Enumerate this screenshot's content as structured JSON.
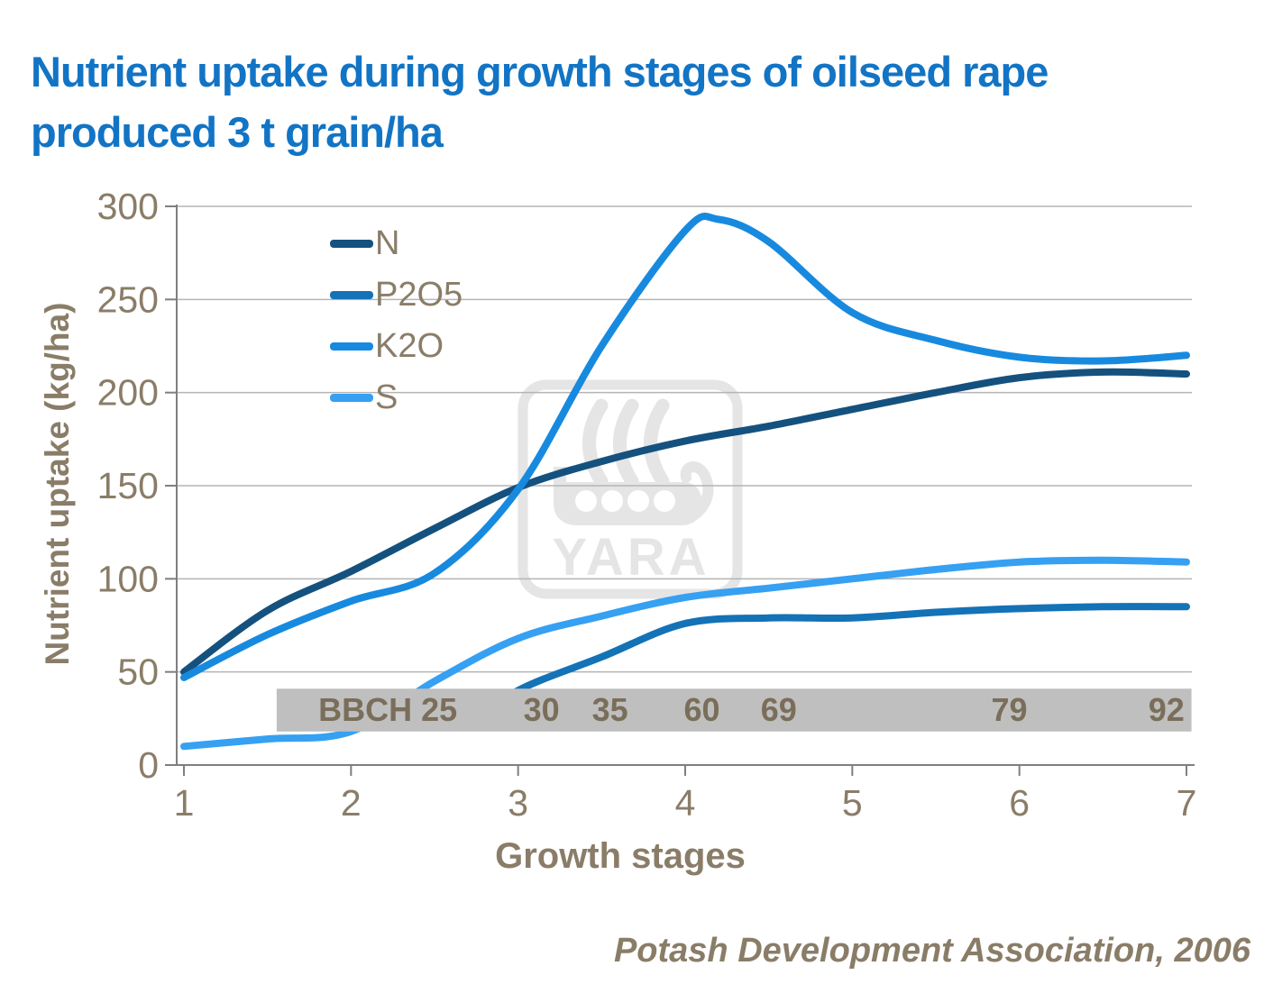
{
  "title": {
    "line1": "Nutrient uptake during growth stages of oilseed rape",
    "line2": "produced 3 t grain/ha"
  },
  "watermark": {
    "text": "YARA"
  },
  "attribution": "Potash Development Association, 2006",
  "colors": {
    "title_text": "#1274C5",
    "axis_text": "#8A7D68",
    "axis_line": "#7F7F7F",
    "gridline": "#B5B5B5",
    "band_fill": "#BFBFBF",
    "band_text": "#7A6E5A",
    "watermark": "#E5E5E5"
  },
  "chart_data": {
    "type": "line",
    "title": "Nutrient uptake during growth stages of oilseed rape produced 3 t grain/ha",
    "xlabel": "Growth stages",
    "ylabel": "Nutrient uptake (kg/ha)",
    "xlim": [
      1,
      7
    ],
    "ylim": [
      0,
      300
    ],
    "x_ticks": [
      1,
      2,
      3,
      4,
      5,
      6,
      7
    ],
    "y_ticks": [
      0,
      50,
      100,
      150,
      200,
      250,
      300
    ],
    "grid": "horizontal",
    "legend_position": "top-left-inside",
    "series": [
      {
        "name": "N",
        "color": "#15517E",
        "points": [
          [
            1,
            50
          ],
          [
            1.5,
            83
          ],
          [
            2,
            104
          ],
          [
            2.5,
            127
          ],
          [
            3,
            149
          ],
          [
            3.5,
            163
          ],
          [
            4,
            174
          ],
          [
            4.5,
            182
          ],
          [
            5,
            191
          ],
          [
            5.5,
            200
          ],
          [
            6,
            208
          ],
          [
            6.5,
            211
          ],
          [
            7,
            210
          ]
        ]
      },
      {
        "name": "P2O5",
        "color": "#1472B7",
        "points": [
          [
            2.75,
            22
          ],
          [
            3,
            40
          ],
          [
            3.5,
            58
          ],
          [
            4,
            76
          ],
          [
            4.5,
            79
          ],
          [
            5,
            79
          ],
          [
            5.5,
            82
          ],
          [
            6,
            84
          ],
          [
            6.5,
            85
          ],
          [
            7,
            85
          ]
        ]
      },
      {
        "name": "K2O",
        "color": "#178ADF",
        "points": [
          [
            1,
            47
          ],
          [
            1.5,
            70
          ],
          [
            2,
            88
          ],
          [
            2.5,
            103
          ],
          [
            3,
            148
          ],
          [
            3.5,
            225
          ],
          [
            4,
            287
          ],
          [
            4.2,
            293
          ],
          [
            4.5,
            281
          ],
          [
            5,
            243
          ],
          [
            5.5,
            228
          ],
          [
            6,
            219
          ],
          [
            6.5,
            217
          ],
          [
            7,
            220
          ]
        ]
      },
      {
        "name": "S",
        "color": "#36A0F2",
        "points": [
          [
            1,
            10
          ],
          [
            1.5,
            14
          ],
          [
            2,
            18
          ],
          [
            2.5,
            45
          ],
          [
            3,
            68
          ],
          [
            3.5,
            80
          ],
          [
            4,
            90
          ],
          [
            4.5,
            95
          ],
          [
            5,
            100
          ],
          [
            5.5,
            105
          ],
          [
            6,
            109
          ],
          [
            6.5,
            110
          ],
          [
            7,
            109
          ]
        ]
      }
    ],
    "bbch_band": {
      "description": "BBCH growth stage codes",
      "stage_start": 1.555,
      "stage_end": 7.03,
      "value_top": 41,
      "value_bottom": 18,
      "codes": [
        {
          "text": "BBCH 25",
          "stage": 2.22
        },
        {
          "text": "30",
          "stage": 3.14
        },
        {
          "text": "35",
          "stage": 3.55
        },
        {
          "text": "60",
          "stage": 4.1
        },
        {
          "text": "69",
          "stage": 4.56
        },
        {
          "text": "79",
          "stage": 5.94
        },
        {
          "text": "92",
          "stage": 6.88
        }
      ]
    }
  }
}
